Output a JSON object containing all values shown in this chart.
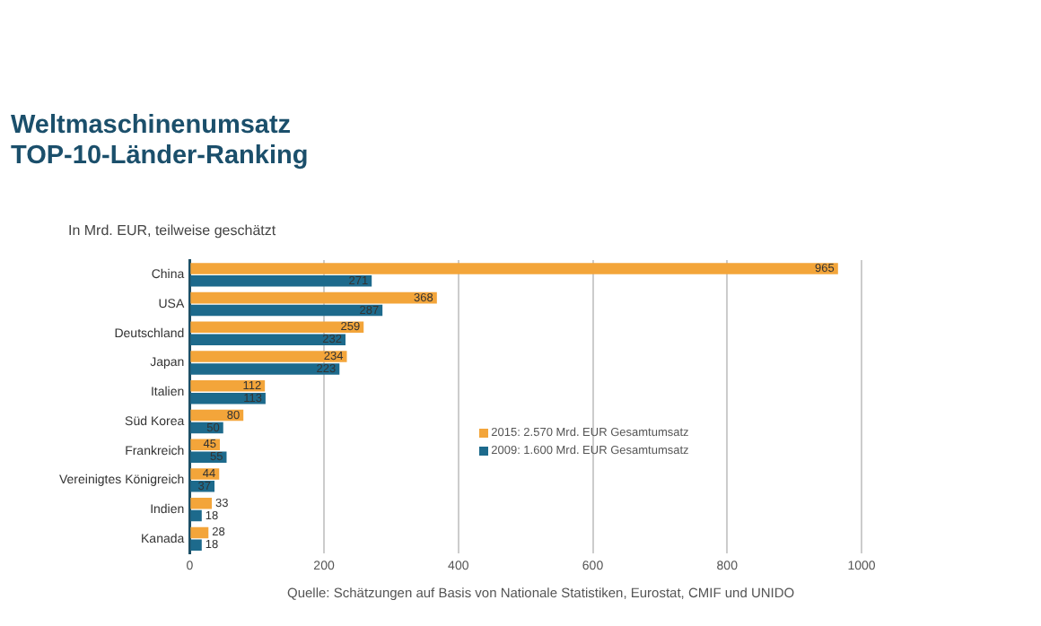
{
  "chart_data": {
    "type": "bar",
    "orientation": "horizontal",
    "title": "Weltmaschinenumsatz\nTOP-10-Länder-Ranking",
    "subtitle": "In Mrd. EUR, teilweise geschätzt",
    "categories": [
      "China",
      "USA",
      "Deutschland",
      "Japan",
      "Italien",
      "Süd Korea",
      "Frankreich",
      "Vereinigtes Königreich",
      "Indien",
      "Kanada"
    ],
    "series": [
      {
        "name": "2015: 2.570 Mrd. EUR Gesamtumsatz",
        "color": "#f3a53a",
        "values": [
          965,
          368,
          259,
          234,
          112,
          80,
          45,
          44,
          33,
          28
        ]
      },
      {
        "name": "2009: 1.600 Mrd. EUR Gesamtumsatz",
        "color": "#1d6a8c",
        "values": [
          271,
          287,
          232,
          223,
          113,
          50,
          55,
          37,
          18,
          18
        ]
      }
    ],
    "xlim": [
      0,
      1000
    ],
    "xticks": [
      0,
      200,
      400,
      600,
      800,
      1000
    ],
    "grid": "x",
    "legend": "right",
    "data_labels": true,
    "annotations": [
      "Quelle: Schätzungen auf Basis von Nationale Statistiken, Eurostat, CMIF und UNIDO"
    ]
  }
}
